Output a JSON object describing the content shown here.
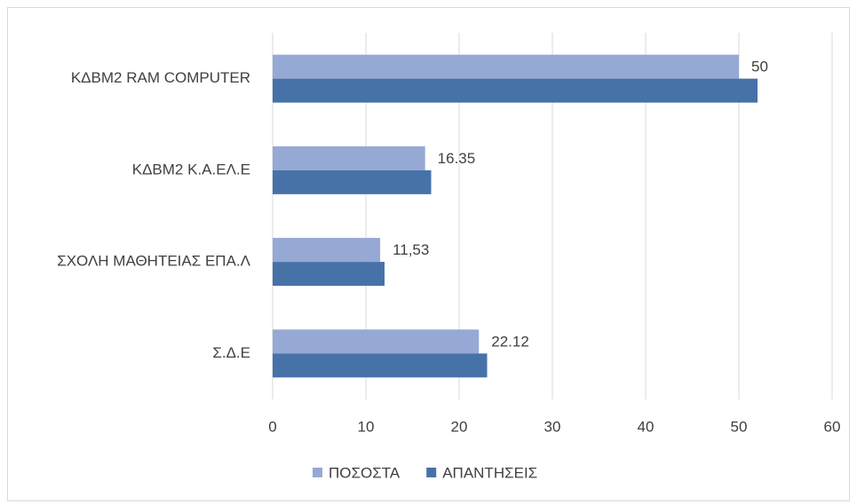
{
  "chart_data": {
    "type": "hbar",
    "categories": [
      "ΚΔΒΜ2 RAM COMPUTER",
      "ΚΔΒΜ2 Κ.Α.ΕΛ.Ε",
      "ΣΧΟΛΗ ΜΑΘΗΤΕΙΑΣ ΕΠΑ.Λ",
      "Σ.Δ.Ε"
    ],
    "series": [
      {
        "name": "ΠΟΣΟΣΤΑ",
        "color": "#95a9d4",
        "values": [
          50,
          16.35,
          11.53,
          22.12
        ],
        "value_labels": [
          "50",
          "16.35",
          "11,53",
          "22.12"
        ]
      },
      {
        "name": "ΑΠΑΝΤΗΣΕΙΣ",
        "color": "#4672a8",
        "values": [
          52,
          17,
          12,
          23
        ]
      }
    ],
    "xlim": [
      0,
      60
    ],
    "xticks": [
      0,
      10,
      20,
      30,
      40,
      50,
      60
    ],
    "grid": true,
    "legend": "bottom"
  }
}
